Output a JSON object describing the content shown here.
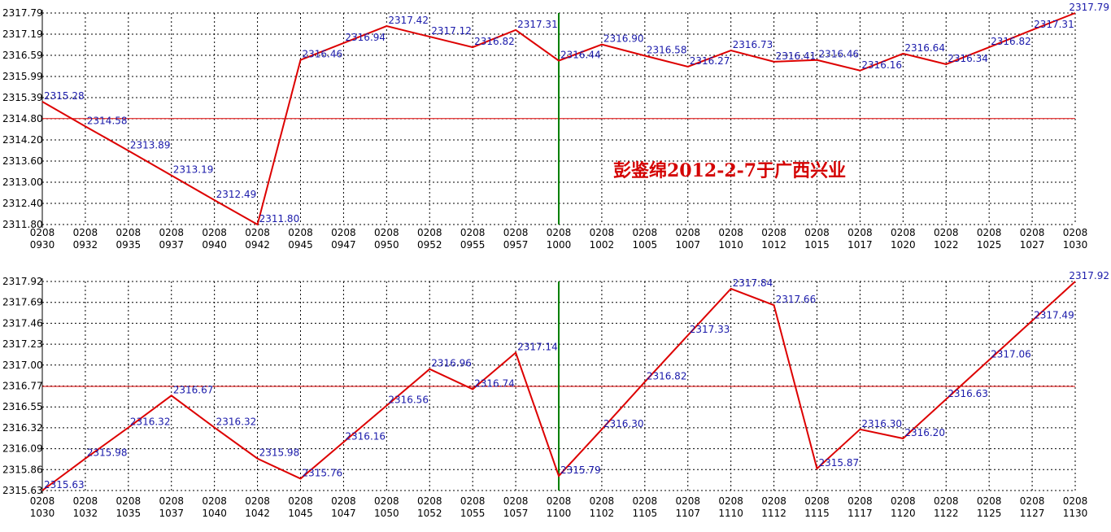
{
  "watermark": "彭鉴绵2012-2-7于广西兴业",
  "colors": {
    "line": "#dd0000",
    "ref_line": "#dd0000",
    "divider": "#008000",
    "grid": "#000000",
    "label": "#1a1aaa"
  },
  "chart_data": [
    {
      "type": "line",
      "grid": true,
      "y_ticks": [
        "2311.80",
        "2312.40",
        "2313.00",
        "2313.60",
        "2314.20",
        "2314.80",
        "2315.39",
        "2315.99",
        "2316.59",
        "2317.19",
        "2317.79"
      ],
      "ylim": [
        2311.8,
        2317.79
      ],
      "ref_value": 2314.8,
      "divider_at": "1000",
      "x_ticks": [
        [
          "0208",
          "0930"
        ],
        [
          "0208",
          "0932"
        ],
        [
          "0208",
          "0935"
        ],
        [
          "0208",
          "0937"
        ],
        [
          "0208",
          "0940"
        ],
        [
          "0208",
          "0942"
        ],
        [
          "0208",
          "0945"
        ],
        [
          "0208",
          "0947"
        ],
        [
          "0208",
          "0950"
        ],
        [
          "0208",
          "0952"
        ],
        [
          "0208",
          "0955"
        ],
        [
          "0208",
          "0957"
        ],
        [
          "0208",
          "1000"
        ],
        [
          "0208",
          "1002"
        ],
        [
          "0208",
          "1005"
        ],
        [
          "0208",
          "1007"
        ],
        [
          "0208",
          "1010"
        ],
        [
          "0208",
          "1012"
        ],
        [
          "0208",
          "1015"
        ],
        [
          "0208",
          "1017"
        ],
        [
          "0208",
          "1020"
        ],
        [
          "0208",
          "1022"
        ],
        [
          "0208",
          "1025"
        ],
        [
          "0208",
          "1027"
        ],
        [
          "0208",
          "1030"
        ]
      ],
      "values": [
        2315.28,
        2314.58,
        2313.89,
        2313.19,
        2312.49,
        2311.8,
        2316.46,
        2316.94,
        2317.42,
        2317.12,
        2316.82,
        2317.31,
        2316.44,
        2316.9,
        2316.58,
        2316.27,
        2316.73,
        2316.41,
        2316.46,
        2316.16,
        2316.64,
        2316.34,
        2316.82,
        2317.31,
        2317.79
      ],
      "labels": [
        "2315.28",
        "2314.58",
        "2313.89",
        "2313.19",
        "2312.49",
        "2311.80",
        "2316.46",
        "2316.94",
        "2317.42",
        "2317.12",
        "2316.82",
        "2317.31",
        "2316.44",
        "2316.90",
        "2316.58",
        "2316.27",
        "2316.73",
        "2316.41",
        "2316.46",
        "2316.16",
        "2316.64",
        "2316.34",
        "2316.82",
        "2317.31",
        "2317.79"
      ]
    },
    {
      "type": "line",
      "grid": true,
      "y_ticks": [
        "2315.63",
        "2315.86",
        "2316.09",
        "2316.32",
        "2316.55",
        "2316.77",
        "2317.00",
        "2317.23",
        "2317.46",
        "2317.69",
        "2317.92"
      ],
      "ylim": [
        2315.63,
        2317.92
      ],
      "ref_value": 2316.77,
      "divider_at": "1100",
      "x_ticks": [
        [
          "0208",
          "1030"
        ],
        [
          "0208",
          "1032"
        ],
        [
          "0208",
          "1035"
        ],
        [
          "0208",
          "1037"
        ],
        [
          "0208",
          "1040"
        ],
        [
          "0208",
          "1042"
        ],
        [
          "0208",
          "1045"
        ],
        [
          "0208",
          "1047"
        ],
        [
          "0208",
          "1050"
        ],
        [
          "0208",
          "1052"
        ],
        [
          "0208",
          "1055"
        ],
        [
          "0208",
          "1057"
        ],
        [
          "0208",
          "1100"
        ],
        [
          "0208",
          "1102"
        ],
        [
          "0208",
          "1105"
        ],
        [
          "0208",
          "1107"
        ],
        [
          "0208",
          "1110"
        ],
        [
          "0208",
          "1112"
        ],
        [
          "0208",
          "1115"
        ],
        [
          "0208",
          "1117"
        ],
        [
          "0208",
          "1120"
        ],
        [
          "0208",
          "1122"
        ],
        [
          "0208",
          "1125"
        ],
        [
          "0208",
          "1127"
        ],
        [
          "0208",
          "1130"
        ]
      ],
      "values": [
        2315.63,
        2315.98,
        2316.32,
        2316.67,
        2316.32,
        2315.98,
        2315.76,
        2316.16,
        2316.56,
        2316.96,
        2316.74,
        2317.14,
        2315.79,
        2316.3,
        2316.82,
        2317.33,
        2317.84,
        2317.66,
        2315.87,
        2316.3,
        2316.2,
        2316.63,
        2317.06,
        2317.49,
        2317.92
      ],
      "labels": [
        "2315.63",
        "2315.98",
        "2316.32",
        "2316.67",
        "2316.32",
        "2315.98",
        "2315.76",
        "2316.16",
        "2316.56",
        "2316.96",
        "2316.74",
        "2317.14",
        "2315.79",
        "2316.30",
        "2316.82",
        "2317.33",
        "2317.84",
        "2317.66",
        "2315.87",
        "2316.30",
        "2316.20",
        "2316.63",
        "2317.06",
        "2317.49",
        "2317.92"
      ]
    }
  ]
}
